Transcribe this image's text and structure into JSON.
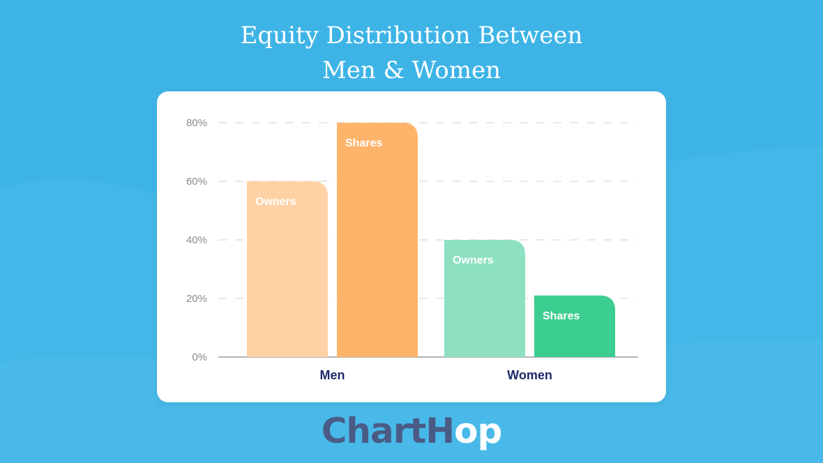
{
  "title_lines": [
    "Equity Distribution Between",
    "Men & Women"
  ],
  "logo": {
    "part1": "ChartH",
    "part2": "op"
  },
  "chart_data": {
    "type": "bar",
    "categories": [
      "Men",
      "Women"
    ],
    "series": [
      {
        "name": "Owners",
        "values": [
          60,
          40
        ],
        "colors": [
          "#ffd2a6",
          "#8de1c1"
        ]
      },
      {
        "name": "Shares",
        "values": [
          80,
          21
        ],
        "colors": [
          "#ffb46b",
          "#3ccd90"
        ]
      }
    ],
    "ylim": [
      0,
      80
    ],
    "yticks": [
      0,
      20,
      40,
      60,
      80
    ],
    "ytick_labels": [
      "0%",
      "20%",
      "40%",
      "60%",
      "80%"
    ],
    "grid": true,
    "colors": {
      "category_label": "#1d2a6b",
      "tick_label": "#8a8a8a",
      "grid": "#d2d2d2",
      "axis": "#9a9a9a"
    }
  }
}
